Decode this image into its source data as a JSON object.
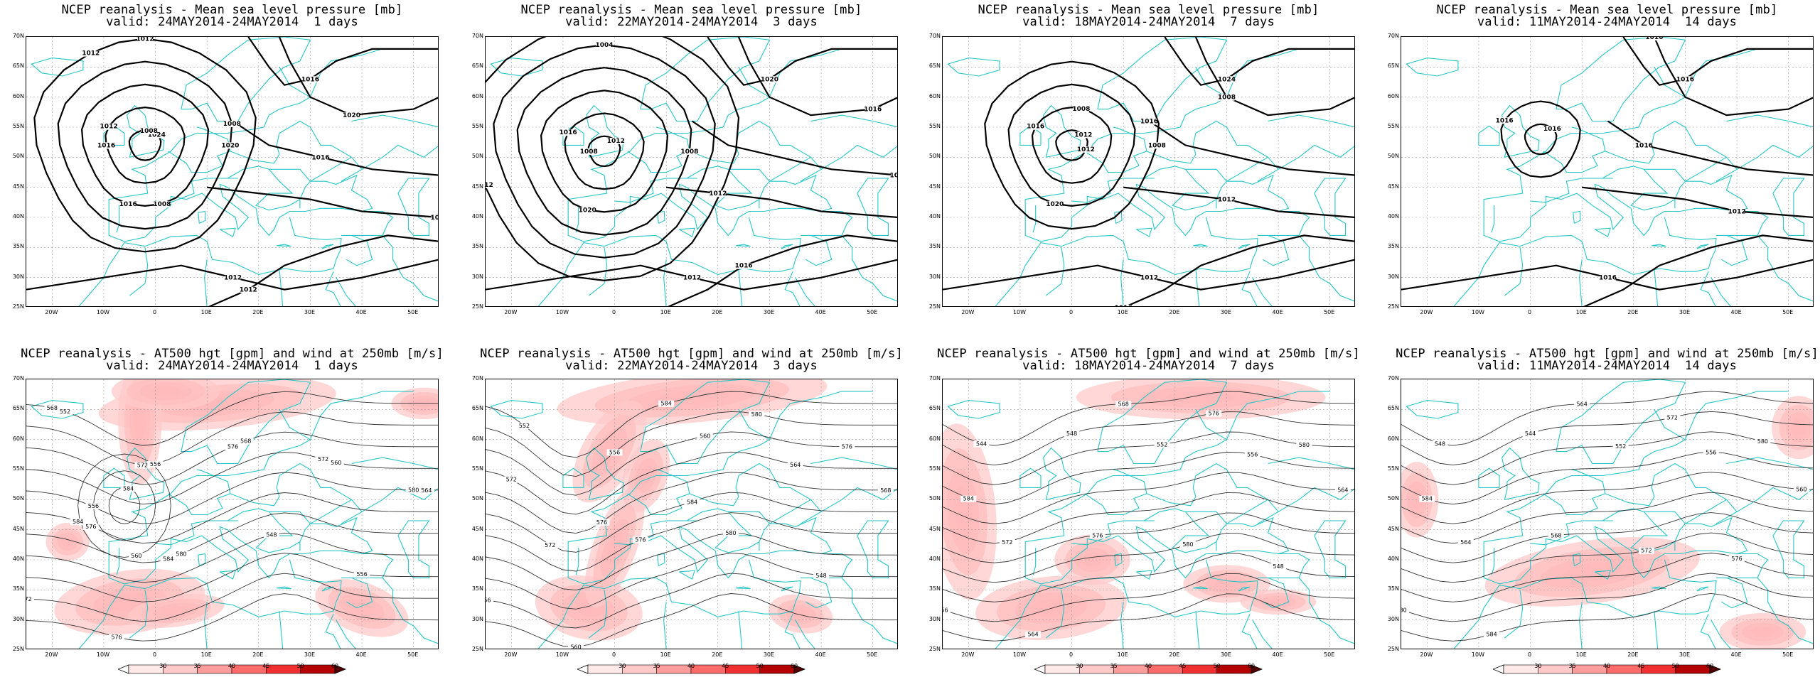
{
  "panels": [
    {
      "title": "NCEP reanalysis - Mean sea level pressure [mb]",
      "valid": "valid: 24MAY2014-24MAY2014  1 days",
      "kind": "slp"
    },
    {
      "title": "NCEP reanalysis - Mean sea level pressure [mb]",
      "valid": "valid: 22MAY2014-24MAY2014  3 days",
      "kind": "slp"
    },
    {
      "title": "NCEP reanalysis - Mean sea level pressure [mb]",
      "valid": "valid: 18MAY2014-24MAY2014  7 days",
      "kind": "slp"
    },
    {
      "title": "NCEP reanalysis - Mean sea level pressure [mb]",
      "valid": "valid: 11MAY2014-24MAY2014  14 days",
      "kind": "slp"
    },
    {
      "title": "NCEP reanalysis - AT500 hgt [gpm] and wind at 250mb [m/s]",
      "valid": "valid: 24MAY2014-24MAY2014  1 days",
      "kind": "z500"
    },
    {
      "title": "NCEP reanalysis - AT500 hgt [gpm] and wind at 250mb [m/s]",
      "valid": "valid: 22MAY2014-24MAY2014  3 days",
      "kind": "z500"
    },
    {
      "title": "NCEP reanalysis - AT500 hgt [gpm] and wind at 250mb [m/s]",
      "valid": "valid: 18MAY2014-24MAY2014  7 days",
      "kind": "z500"
    },
    {
      "title": "NCEP reanalysis - AT500 hgt [gpm] and wind at 250mb [m/s]",
      "valid": "valid: 11MAY2014-24MAY2014  14 days",
      "kind": "z500"
    }
  ],
  "axes": {
    "lat_labels": [
      "70N",
      "65N",
      "60N",
      "55N",
      "50N",
      "45N",
      "40N",
      "35N",
      "30N",
      "25N"
    ],
    "lon_labels": [
      "20W",
      "10W",
      "0",
      "10E",
      "20E",
      "30E",
      "40E",
      "50E"
    ]
  },
  "colorbar": {
    "labels": [
      "30",
      "35",
      "40",
      "45",
      "50",
      "60"
    ],
    "colors": [
      "#ffe8e8",
      "#ffc9c9",
      "#ff9c9c",
      "#ff6a6a",
      "#f03030",
      "#b40000"
    ]
  },
  "slp_labels": [
    [
      "1024",
      "1012",
      "1016",
      "1020",
      "1012",
      "1016",
      "1020",
      "1016",
      "1016",
      "1012",
      "1012",
      "1008",
      "1016",
      "1008",
      "1008",
      "1012"
    ],
    [
      "1012",
      "1016",
      "1020",
      "1008",
      "1004",
      "1012",
      "1020",
      "1016",
      "1016",
      "1012",
      "1012",
      "1016",
      "1008"
    ],
    [
      "1012",
      "1016",
      "1020",
      "1008",
      "1024",
      "1008",
      "1016",
      "1012",
      "1012",
      "1016",
      "1012",
      "1008"
    ],
    [
      "1016",
      "1016",
      "1016",
      "1016",
      "1016",
      "1012",
      "1016"
    ]
  ],
  "z500_labels": [
    [
      "552",
      "556",
      "568",
      "560",
      "564",
      "576",
      "580",
      "548",
      "556",
      "572",
      "576",
      "584",
      "556",
      "560",
      "568",
      "572",
      "576",
      "572",
      "580",
      "584",
      "584"
    ],
    [
      "552",
      "556",
      "560",
      "564",
      "568",
      "572",
      "576",
      "580",
      "548",
      "556",
      "560",
      "584",
      "580",
      "576",
      "572",
      "576",
      "584"
    ],
    [
      "544",
      "548",
      "552",
      "556",
      "564",
      "572",
      "576",
      "580",
      "548",
      "556",
      "564",
      "568",
      "576",
      "580",
      "584"
    ],
    [
      "548",
      "544",
      "552",
      "556",
      "560",
      "564",
      "568",
      "572",
      "576",
      "580",
      "584",
      "564",
      "572",
      "580",
      "584"
    ]
  ],
  "colors": {
    "coast": "#27c6c6",
    "contour": "#000000",
    "z500_contour": "#333333",
    "grid": "#9a9a9a"
  }
}
